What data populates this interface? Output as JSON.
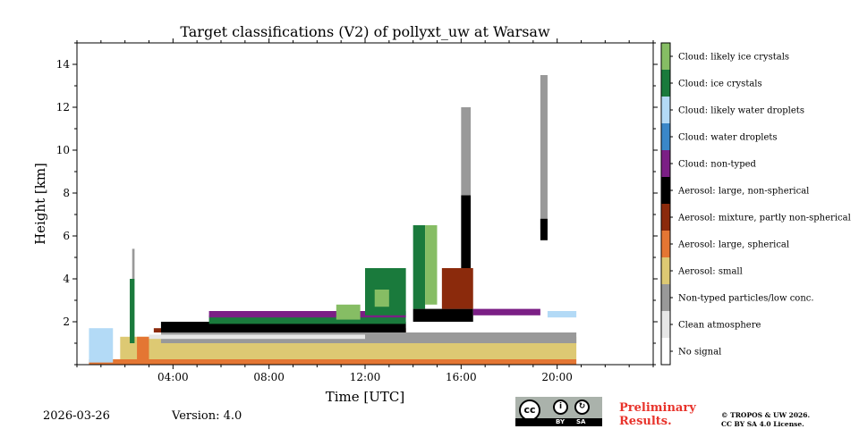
{
  "chart_data": {
    "type": "heatmap",
    "title": "Target classifications (V2) of pollyxt_uw at Warsaw",
    "xlabel": "Time [UTC]",
    "ylabel": "Height [km]",
    "xlim": [
      0,
      24
    ],
    "ylim": [
      0,
      15
    ],
    "x_ticks": [
      {
        "value": 4,
        "label": "04:00"
      },
      {
        "value": 8,
        "label": "08:00"
      },
      {
        "value": 12,
        "label": "12:00"
      },
      {
        "value": 16,
        "label": "16:00"
      },
      {
        "value": 20,
        "label": "20:00"
      }
    ],
    "y_ticks": [
      {
        "value": 2,
        "label": "2"
      },
      {
        "value": 4,
        "label": "4"
      },
      {
        "value": 6,
        "label": "6"
      },
      {
        "value": 8,
        "label": "8"
      },
      {
        "value": 10,
        "label": "10"
      },
      {
        "value": 12,
        "label": "12"
      },
      {
        "value": 14,
        "label": "14"
      }
    ],
    "classes": [
      {
        "code": 0,
        "label": "No signal",
        "color": "#ffffff"
      },
      {
        "code": 1,
        "label": "Clean atmosphere",
        "color": "#e6e6e6"
      },
      {
        "code": 2,
        "label": "Non-typed particles/low conc.",
        "color": "#999999"
      },
      {
        "code": 3,
        "label": "Aerosol: small",
        "color": "#ddc973"
      },
      {
        "code": 4,
        "label": "Aerosol: large, spherical",
        "color": "#e47633"
      },
      {
        "code": 5,
        "label": "Aerosol: mixture, partly non-spherical",
        "color": "#8b2a0c"
      },
      {
        "code": 6,
        "label": "Aerosol: large, non-spherical",
        "color": "#000000"
      },
      {
        "code": 7,
        "label": "Cloud: non-typed",
        "color": "#7b1f85"
      },
      {
        "code": 8,
        "label": "Cloud: water droplets",
        "color": "#3a87c8"
      },
      {
        "code": 9,
        "label": "Cloud: likely water droplets",
        "color": "#b3daf6"
      },
      {
        "code": 10,
        "label": "Cloud: ice crystals",
        "color": "#1a7a3c"
      },
      {
        "code": 11,
        "label": "Cloud: likely ice crystals",
        "color": "#86bd64"
      }
    ],
    "regions": [
      {
        "class": 4,
        "x": [
          0.5,
          20.8
        ],
        "y": [
          0,
          0.25
        ]
      },
      {
        "class": 3,
        "x": [
          1.8,
          20.8
        ],
        "y": [
          0.25,
          1.3
        ]
      },
      {
        "class": 2,
        "x": [
          3.5,
          20.8
        ],
        "y": [
          1.0,
          1.5
        ]
      },
      {
        "class": 1,
        "x": [
          3.0,
          12.0
        ],
        "y": [
          1.2,
          1.4
        ]
      },
      {
        "class": 4,
        "x": [
          2.5,
          3.0
        ],
        "y": [
          0.2,
          1.3
        ]
      },
      {
        "class": 5,
        "x": [
          3.2,
          13.7
        ],
        "y": [
          1.5,
          1.7
        ]
      },
      {
        "class": 6,
        "x": [
          3.5,
          13.7
        ],
        "y": [
          1.5,
          2.0
        ]
      },
      {
        "class": 10,
        "x": [
          5.5,
          13.7
        ],
        "y": [
          1.9,
          2.3
        ]
      },
      {
        "class": 7,
        "x": [
          5.5,
          13.7
        ],
        "y": [
          2.2,
          2.5
        ]
      },
      {
        "class": 11,
        "x": [
          10.8,
          11.8
        ],
        "y": [
          2.1,
          2.8
        ]
      },
      {
        "class": 10,
        "x": [
          12.0,
          13.7
        ],
        "y": [
          2.3,
          4.5
        ]
      },
      {
        "class": 11,
        "x": [
          12.4,
          13.0
        ],
        "y": [
          2.7,
          3.5
        ]
      },
      {
        "class": 6,
        "x": [
          14.0,
          16.5
        ],
        "y": [
          2.0,
          2.6
        ]
      },
      {
        "class": 5,
        "x": [
          15.2,
          16.5
        ],
        "y": [
          2.6,
          4.5
        ]
      },
      {
        "class": 10,
        "x": [
          14.0,
          14.5
        ],
        "y": [
          2.6,
          6.5
        ]
      },
      {
        "class": 11,
        "x": [
          14.5,
          15.0
        ],
        "y": [
          2.8,
          6.5
        ]
      },
      {
        "class": 7,
        "x": [
          16.5,
          19.3
        ],
        "y": [
          2.3,
          2.6
        ]
      },
      {
        "class": 6,
        "x": [
          16.0,
          16.4
        ],
        "y": [
          4.5,
          7.9
        ]
      },
      {
        "class": 2,
        "x": [
          16.0,
          16.4
        ],
        "y": [
          7.9,
          12.0
        ]
      },
      {
        "class": 2,
        "x": [
          19.3,
          19.6
        ],
        "y": [
          6.3,
          13.5
        ]
      },
      {
        "class": 6,
        "x": [
          19.3,
          19.6
        ],
        "y": [
          5.8,
          6.8
        ]
      },
      {
        "class": 9,
        "x": [
          19.6,
          20.8
        ],
        "y": [
          2.2,
          2.5
        ]
      },
      {
        "class": 9,
        "x": [
          0.5,
          1.5
        ],
        "y": [
          0.1,
          1.7
        ]
      },
      {
        "class": 10,
        "x": [
          2.2,
          2.4
        ],
        "y": [
          1.0,
          4.0
        ]
      },
      {
        "class": 2,
        "x": [
          2.3,
          2.4
        ],
        "y": [
          4.0,
          5.4
        ]
      }
    ],
    "colorbar_position": "right"
  },
  "footer": {
    "date": "2026-03-26",
    "version": "Version: 4.0",
    "preliminary": [
      "Preliminary",
      "Results."
    ],
    "copyright": [
      "© TROPOS & UW 2026.",
      "CC BY SA 4.0 License."
    ],
    "license_badge": {
      "cc": "cc",
      "by": "BY",
      "sa": "SA",
      "icon_by": "person-icon",
      "icon_sa": "share-alike-icon"
    }
  }
}
